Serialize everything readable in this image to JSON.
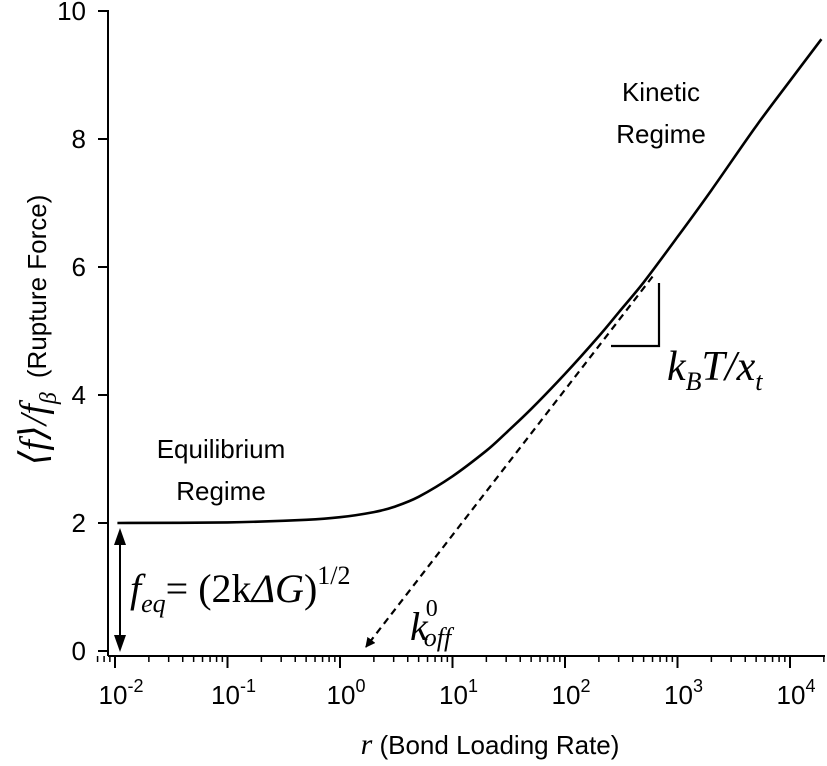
{
  "chart_data": {
    "type": "line",
    "xscale": "log",
    "xlim": [
      0.007,
      20000
    ],
    "ylim": [
      0,
      10
    ],
    "grid": false,
    "legend": "none",
    "xlabel": {
      "symbol": "r",
      "text": " (Bond Loading Rate)"
    },
    "ylabel": {
      "symbol": "⟨f⟩/f",
      "subscript": "β",
      "text": "(Rupture Force)"
    },
    "xticks": [
      {
        "value": 0.01,
        "base": "10",
        "exp": "-2"
      },
      {
        "value": 0.1,
        "base": "10",
        "exp": "-1"
      },
      {
        "value": 1,
        "base": "10",
        "exp": "0"
      },
      {
        "value": 10,
        "base": "10",
        "exp": "1"
      },
      {
        "value": 100,
        "base": "10",
        "exp": "2"
      },
      {
        "value": 1000,
        "base": "10",
        "exp": "3"
      },
      {
        "value": 10000,
        "base": "10",
        "exp": "4"
      }
    ],
    "yticks": [
      {
        "value": 0,
        "label": "0"
      },
      {
        "value": 2,
        "label": "2"
      },
      {
        "value": 4,
        "label": "4"
      },
      {
        "value": 6,
        "label": "6"
      },
      {
        "value": 8,
        "label": "8"
      },
      {
        "value": 10,
        "label": "10"
      }
    ],
    "series": [
      {
        "style": "solid",
        "x": [
          0.0105,
          0.1,
          0.5,
          1,
          2,
          3,
          5,
          10,
          20,
          30,
          50,
          100,
          200,
          300,
          500,
          1000,
          2000,
          5000,
          10000,
          19000
        ],
        "y": [
          2.0,
          2.01,
          2.05,
          2.09,
          2.17,
          2.25,
          2.41,
          2.73,
          3.13,
          3.41,
          3.78,
          4.33,
          4.92,
          5.29,
          5.76,
          6.47,
          7.2,
          8.2,
          8.91,
          9.56
        ]
      },
      {
        "style": "dashed",
        "x": [
          1.7,
          600
        ],
        "y": [
          0,
          5.85
        ]
      }
    ],
    "annotations": {
      "equilibrium": [
        "Equilibrium",
        "Regime"
      ],
      "kinetic": [
        "Kinetic",
        "Regime"
      ],
      "slope_label": {
        "k": "k",
        "B": "B",
        "T": "T/x",
        "t": "t"
      },
      "feq_label": {
        "f": "f",
        "eq": "eq",
        "eq_sign": "= (2k",
        "delta": "ΔG",
        "close": ")",
        "power": "1/2"
      },
      "koff_label": {
        "k": "k",
        "sup": "0",
        "sub": "off"
      }
    }
  }
}
